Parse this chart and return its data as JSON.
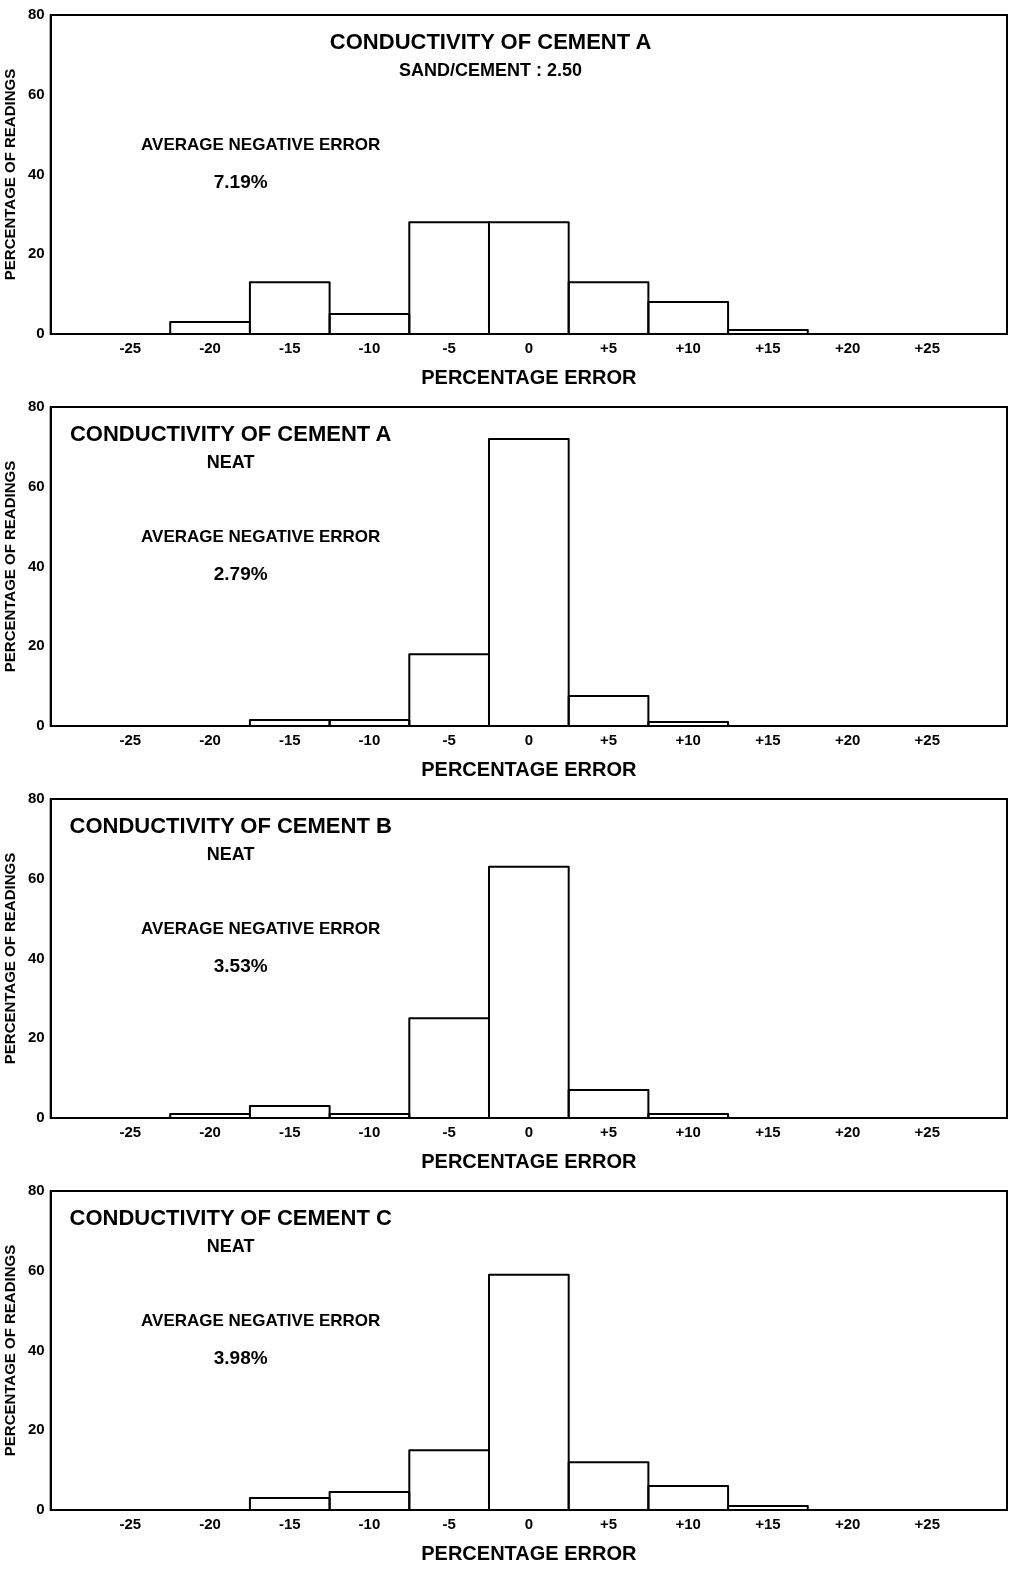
{
  "chart_data": [
    {
      "type": "histogram",
      "title": "CONDUCTIVITY OF CEMENT A",
      "subtitle": "SAND/CEMENT : 2.50",
      "xlabel": "PERCENTAGE ERROR",
      "ylabel": "PERCENTAGE OF READINGS",
      "annotations": [
        "AVERAGE NEGATIVE ERROR",
        "7.19%"
      ],
      "bins": [
        -22.5,
        -17.5,
        -12.5,
        -7.5,
        -2.5,
        2.5,
        7.5,
        12.5,
        17.5
      ],
      "values": [
        3,
        13,
        5,
        28,
        28,
        13,
        8,
        1
      ],
      "color": "#000000",
      "xlim": [
        -30,
        30
      ],
      "xticks": [
        -25,
        -20,
        -15,
        -10,
        -5,
        0,
        {
          "value": 5,
          "label": "+5"
        },
        {
          "value": 10,
          "label": "+10"
        },
        {
          "value": 15,
          "label": "+15"
        },
        {
          "value": 20,
          "label": "+20"
        },
        {
          "value": 25,
          "label": "+25"
        }
      ],
      "ylim": [
        0,
        80
      ],
      "yticks": [
        0,
        20,
        40,
        60,
        80
      ],
      "grid": false,
      "legend": false
    },
    {
      "type": "histogram",
      "title": "CONDUCTIVITY OF CEMENT A",
      "subtitle": "NEAT",
      "xlabel": "PERCENTAGE ERROR",
      "ylabel": "PERCENTAGE OF READINGS",
      "annotations": [
        "AVERAGE NEGATIVE ERROR",
        "2.79%"
      ],
      "bins": [
        -17.5,
        -12.5,
        -7.5,
        -2.5,
        2.5,
        7.5,
        12.5
      ],
      "values": [
        1.5,
        1.5,
        18,
        72,
        7.5,
        1
      ],
      "color": "#000000",
      "xlim": [
        -30,
        30
      ],
      "xticks": [
        -25,
        -20,
        -15,
        -10,
        -5,
        0,
        {
          "value": 5,
          "label": "+5"
        },
        {
          "value": 10,
          "label": "+10"
        },
        {
          "value": 15,
          "label": "+15"
        },
        {
          "value": 20,
          "label": "+20"
        },
        {
          "value": 25,
          "label": "+25"
        }
      ],
      "ylim": [
        0,
        80
      ],
      "yticks": [
        0,
        20,
        40,
        60,
        80
      ],
      "grid": false,
      "legend": false
    },
    {
      "type": "histogram",
      "title": "CONDUCTIVITY OF CEMENT B",
      "subtitle": "NEAT",
      "xlabel": "PERCENTAGE ERROR",
      "ylabel": "PERCENTAGE OF READINGS",
      "annotations": [
        "AVERAGE NEGATIVE ERROR",
        "3.53%"
      ],
      "bins": [
        -22.5,
        -17.5,
        -12.5,
        -7.5,
        -2.5,
        2.5,
        7.5,
        12.5
      ],
      "values": [
        1,
        3,
        1,
        25,
        63,
        7,
        1
      ],
      "color": "#000000",
      "xlim": [
        -30,
        30
      ],
      "xticks": [
        -25,
        -20,
        -15,
        -10,
        -5,
        0,
        {
          "value": 5,
          "label": "+5"
        },
        {
          "value": 10,
          "label": "+10"
        },
        {
          "value": 15,
          "label": "+15"
        },
        {
          "value": 20,
          "label": "+20"
        },
        {
          "value": 25,
          "label": "+25"
        }
      ],
      "ylim": [
        0,
        80
      ],
      "yticks": [
        0,
        20,
        40,
        60,
        80
      ],
      "grid": false,
      "legend": false
    },
    {
      "type": "histogram",
      "title": "CONDUCTIVITY OF CEMENT C",
      "subtitle": "NEAT",
      "xlabel": "PERCENTAGE ERROR",
      "ylabel": "PERCENTAGE OF READINGS",
      "annotations": [
        "AVERAGE NEGATIVE ERROR",
        "3.98%"
      ],
      "bins": [
        -17.5,
        -12.5,
        -7.5,
        -2.5,
        2.5,
        7.5,
        12.5,
        17.5
      ],
      "values": [
        3,
        4.5,
        15,
        59,
        12,
        6,
        1
      ],
      "color": "#000000",
      "xlim": [
        -30,
        30
      ],
      "xticks": [
        -25,
        -20,
        -15,
        -10,
        -5,
        0,
        {
          "value": 5,
          "label": "+5"
        },
        {
          "value": 10,
          "label": "+10"
        },
        {
          "value": 15,
          "label": "+15"
        },
        {
          "value": 20,
          "label": "+20"
        },
        {
          "value": 25,
          "label": "+25"
        }
      ],
      "ylim": [
        0,
        80
      ],
      "yticks": [
        0,
        20,
        40,
        60,
        80
      ],
      "grid": false,
      "legend": false
    }
  ]
}
